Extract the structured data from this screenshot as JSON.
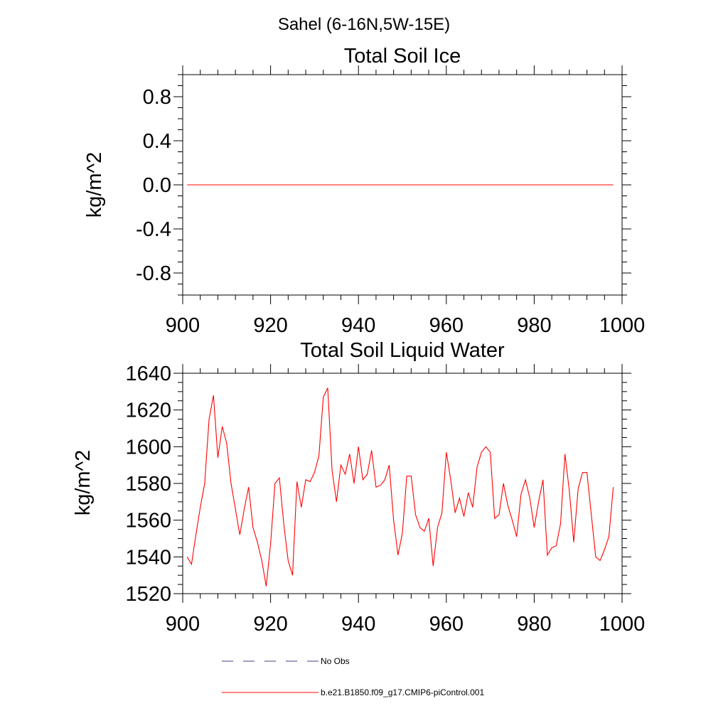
{
  "figure": {
    "suptitle": "Sahel (6-16N,5W-15E)"
  },
  "chart_data": [
    {
      "type": "line",
      "title": "Total Soil Ice",
      "xlabel": "",
      "ylabel": "kg/m^2",
      "xlim": [
        900,
        1000
      ],
      "ylim": [
        -1.0,
        1.0
      ],
      "x_ticks": [
        900,
        920,
        940,
        960,
        980,
        1000
      ],
      "x_tick_labels": [
        "900",
        "920",
        "940",
        "960",
        "980",
        "1000"
      ],
      "y_ticks": [
        -0.8,
        -0.4,
        0.0,
        0.4,
        0.8
      ],
      "y_tick_labels": [
        "-0.8",
        "-0.4",
        "0.0",
        "0.4",
        "0.8"
      ],
      "grid": false,
      "series": [
        {
          "name": "b.e21.B1850.f09_g17.CMIP6-piControl.001",
          "color": "#ff0000",
          "x_start": 901,
          "x_end": 998,
          "values": [
            0.0,
            0.0
          ]
        }
      ]
    },
    {
      "type": "line",
      "title": "Total Soil Liquid Water",
      "xlabel": "",
      "ylabel": "kg/m^2",
      "xlim": [
        900,
        1000
      ],
      "ylim": [
        1520,
        1640
      ],
      "x_ticks": [
        900,
        920,
        940,
        960,
        980,
        1000
      ],
      "x_tick_labels": [
        "900",
        "920",
        "940",
        "960",
        "980",
        "1000"
      ],
      "y_ticks": [
        1520,
        1540,
        1560,
        1580,
        1600,
        1620,
        1640
      ],
      "y_tick_labels": [
        "1520",
        "1540",
        "1560",
        "1580",
        "1600",
        "1620",
        "1640"
      ],
      "grid": false,
      "series": [
        {
          "name": "b.e21.B1850.f09_g17.CMIP6-piControl.001",
          "color": "#ff0000",
          "x_start": 901,
          "x_end": 998,
          "values": [
            1540,
            1536,
            1552,
            1567,
            1580,
            1615,
            1628,
            1594,
            1611,
            1602,
            1580,
            1566,
            1552,
            1566,
            1578,
            1556,
            1548,
            1538,
            1524,
            1547,
            1580,
            1583,
            1558,
            1538,
            1530,
            1581,
            1567,
            1582,
            1581,
            1586,
            1595,
            1627,
            1632,
            1587,
            1570,
            1590,
            1585,
            1596,
            1580,
            1600,
            1582,
            1585,
            1598,
            1578,
            1579,
            1582,
            1590,
            1560,
            1541,
            1553,
            1584,
            1584,
            1563,
            1556,
            1554,
            1561,
            1535,
            1556,
            1564,
            1597,
            1582,
            1564,
            1572,
            1562,
            1575,
            1567,
            1589,
            1597,
            1600,
            1597,
            1561,
            1563,
            1580,
            1568,
            1560,
            1551,
            1574,
            1582,
            1572,
            1556,
            1570,
            1582,
            1541,
            1545,
            1546,
            1558,
            1596,
            1576,
            1548,
            1577,
            1586,
            1586,
            1563,
            1540,
            1538,
            1544,
            1551,
            1578
          ]
        }
      ]
    }
  ],
  "legend": {
    "placement": "bottom",
    "entries": [
      {
        "label": "No Obs",
        "color": "#404080",
        "style": "dashed"
      },
      {
        "label": "b.e21.B1850.f09_g17.CMIP6-piControl.001",
        "color": "#ff0000",
        "style": "solid"
      }
    ]
  }
}
